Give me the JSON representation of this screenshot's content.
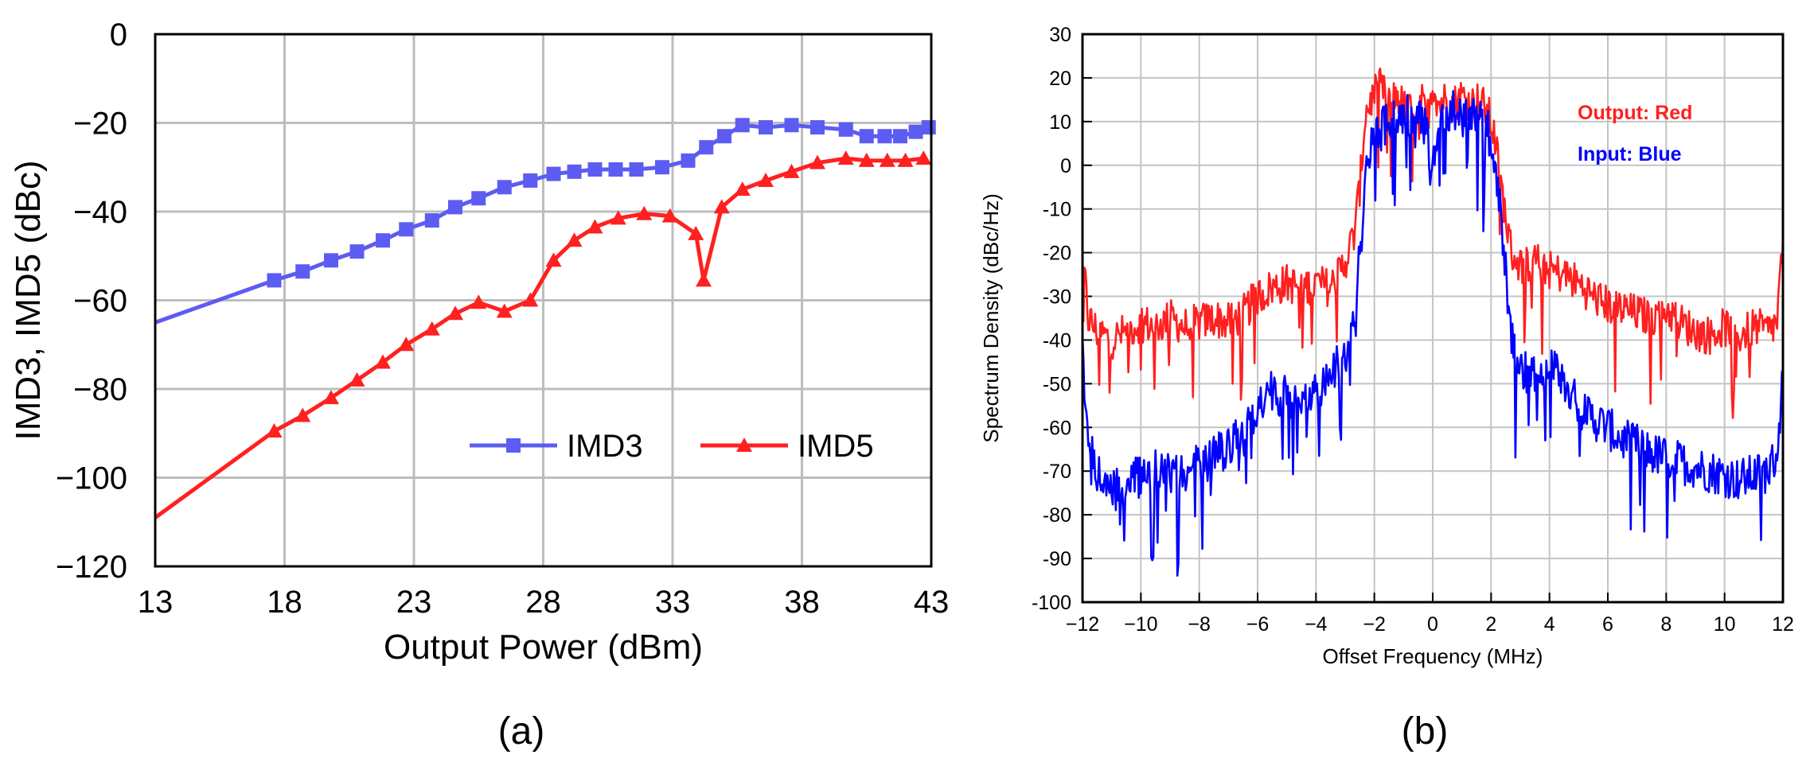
{
  "chart_data": [
    {
      "id": "a",
      "type": "line",
      "caption": "(a)",
      "xlabel": "Output Power (dBm)",
      "ylabel": "IMD3, IMD5 (dBc)",
      "xlim": [
        13,
        43
      ],
      "ylim": [
        -120,
        0
      ],
      "xticks": [
        13,
        18,
        23,
        28,
        33,
        38,
        43
      ],
      "yticks": [
        0,
        -20,
        -40,
        -60,
        -80,
        -100,
        -120
      ],
      "ytick_labels": [
        "0",
        "−20",
        "−40",
        "−60",
        "−80",
        "−100",
        "−120"
      ],
      "grid": true,
      "legend_position": "lower-right",
      "series": [
        {
          "name": "IMD3",
          "color": "#5c5cf2",
          "marker": "square",
          "line_start": [
            13,
            -65
          ],
          "x": [
            17.6,
            18.7,
            19.8,
            20.8,
            21.8,
            22.7,
            23.7,
            24.6,
            25.5,
            26.5,
            27.5,
            28.4,
            29.2,
            30.0,
            30.8,
            31.6,
            32.6,
            33.6,
            34.3,
            35.0,
            35.7,
            36.6,
            37.6,
            38.6,
            39.7,
            40.5,
            41.2,
            41.8,
            42.4,
            42.9
          ],
          "y": [
            -55.5,
            -53.5,
            -51,
            -49,
            -46.5,
            -44,
            -42,
            -39,
            -37,
            -34.5,
            -33,
            -31.5,
            -31,
            -30.5,
            -30.5,
            -30.5,
            -30,
            -28.5,
            -25.5,
            -23,
            -20.5,
            -21,
            -20.5,
            -21,
            -21.5,
            -23,
            -23,
            -23,
            -22,
            -21
          ]
        },
        {
          "name": "IMD5",
          "color": "#ff2020",
          "marker": "triangle",
          "line_start": [
            13,
            -109
          ],
          "x": [
            17.6,
            18.7,
            19.8,
            20.8,
            21.8,
            22.7,
            23.7,
            24.6,
            25.5,
            26.5,
            27.5,
            28.4,
            29.2,
            30.0,
            30.9,
            31.9,
            32.9,
            33.9,
            34.2,
            34.9,
            35.7,
            36.6,
            37.6,
            38.6,
            39.7,
            40.5,
            41.3,
            42.0,
            42.7
          ],
          "y": [
            -89.5,
            -86,
            -82,
            -78,
            -74,
            -70,
            -66.5,
            -63,
            -60.5,
            -62.5,
            -60,
            -51,
            -46.5,
            -43.5,
            -41.5,
            -40.5,
            -41,
            -45,
            -55.5,
            -39,
            -35,
            -33,
            -31,
            -29,
            -28,
            -28.5,
            -28.5,
            -28.5,
            -28
          ]
        }
      ]
    },
    {
      "id": "b",
      "type": "line",
      "caption": "(b)",
      "xlabel": "Offset Frequency (MHz)",
      "ylabel": "Spectrum Density (dBc/Hz)",
      "xlim": [
        -12,
        12
      ],
      "ylim": [
        -100,
        30
      ],
      "xticks": [
        -12,
        -10,
        -8,
        -6,
        -4,
        -2,
        0,
        2,
        4,
        6,
        8,
        10,
        12
      ],
      "xtick_labels": [
        "−12",
        "−10",
        "−8",
        "−6",
        "−4",
        "−2",
        "0",
        "2",
        "4",
        "6",
        "8",
        "10",
        "12"
      ],
      "yticks": [
        30,
        20,
        10,
        0,
        -10,
        -20,
        -30,
        -40,
        -50,
        -60,
        -70,
        -80,
        -90,
        -100
      ],
      "grid": true,
      "annotations": [
        {
          "text": "Output: Red",
          "color": "#ff2020"
        },
        {
          "text": "Input: Blue",
          "color": "#0000ff"
        }
      ],
      "series": [
        {
          "name": "Output",
          "color": "#ff2020",
          "x": [
            -12,
            -11.8,
            -11.5,
            -11,
            -10.5,
            -10,
            -9.5,
            -9,
            -8.5,
            -8,
            -7.5,
            -7,
            -6.5,
            -6,
            -5.5,
            -5,
            -4.5,
            -4,
            -3.5,
            -3,
            -2.7,
            -2.5,
            -2.3,
            -2.1,
            -1.8,
            -1.5,
            -1.2,
            -0.9,
            -0.6,
            -0.4,
            -0.2,
            0,
            0.2,
            0.4,
            0.7,
            1.0,
            1.3,
            1.6,
            1.9,
            2.1,
            2.3,
            2.5,
            2.7,
            3,
            3.5,
            4,
            4.5,
            5,
            5.5,
            6,
            6.5,
            7,
            7.5,
            8,
            8.5,
            9,
            9.5,
            10,
            10.5,
            11,
            11.5,
            11.8,
            12
          ],
          "y": [
            -20,
            -35,
            -38,
            -40,
            -38,
            -36,
            -37,
            -35,
            -37,
            -36,
            -35,
            -36,
            -34,
            -30,
            -28,
            -27,
            -28,
            -27,
            -28,
            -22,
            -16,
            -5,
            12,
            15,
            18,
            14,
            16,
            12,
            13,
            15,
            10,
            19,
            14,
            15,
            14,
            16,
            14,
            15,
            12,
            7,
            -2,
            -12,
            -20,
            -23,
            -22,
            -24,
            -25,
            -27,
            -30,
            -32,
            -33,
            -34,
            -35,
            -33,
            -36,
            -38,
            -39,
            -37,
            -39,
            -37,
            -38,
            -36,
            -17
          ]
        },
        {
          "name": "Input",
          "color": "#0000ff",
          "x": [
            -12,
            -11.9,
            -11.7,
            -11.4,
            -11,
            -10.5,
            -10,
            -9.5,
            -9,
            -8.5,
            -8,
            -7.5,
            -7,
            -6.5,
            -6,
            -5.5,
            -5,
            -4.5,
            -4,
            -3.5,
            -3,
            -2.7,
            -2.5,
            -2.3,
            -2.1,
            -1.8,
            -1.5,
            -1.2,
            -0.9,
            -0.6,
            -0.4,
            -0.2,
            -0.05,
            0,
            0.2,
            0.4,
            0.7,
            1.0,
            1.3,
            1.6,
            1.9,
            2.1,
            2.3,
            2.5,
            2.7,
            3,
            3.5,
            4,
            4.5,
            5,
            5.5,
            6,
            6.5,
            7,
            7.5,
            8,
            8.5,
            9,
            9.5,
            10,
            10.5,
            11,
            11.5,
            11.8,
            12
          ],
          "y": [
            -42,
            -60,
            -66,
            -72,
            -75,
            -73,
            -71,
            -70,
            -71,
            -70,
            -68,
            -67,
            -64,
            -62,
            -55,
            -52,
            -53,
            -54,
            -52,
            -48,
            -44,
            -35,
            -20,
            -4,
            5,
            8,
            11,
            10,
            12,
            9,
            10,
            8,
            -5,
            0,
            10,
            13,
            12,
            11,
            12,
            10,
            8,
            3,
            -10,
            -25,
            -40,
            -47,
            -49,
            -46,
            -50,
            -55,
            -58,
            -60,
            -63,
            -64,
            -66,
            -67,
            -68,
            -69,
            -70,
            -71,
            -72,
            -71,
            -70,
            -66,
            -48
          ]
        }
      ]
    }
  ]
}
